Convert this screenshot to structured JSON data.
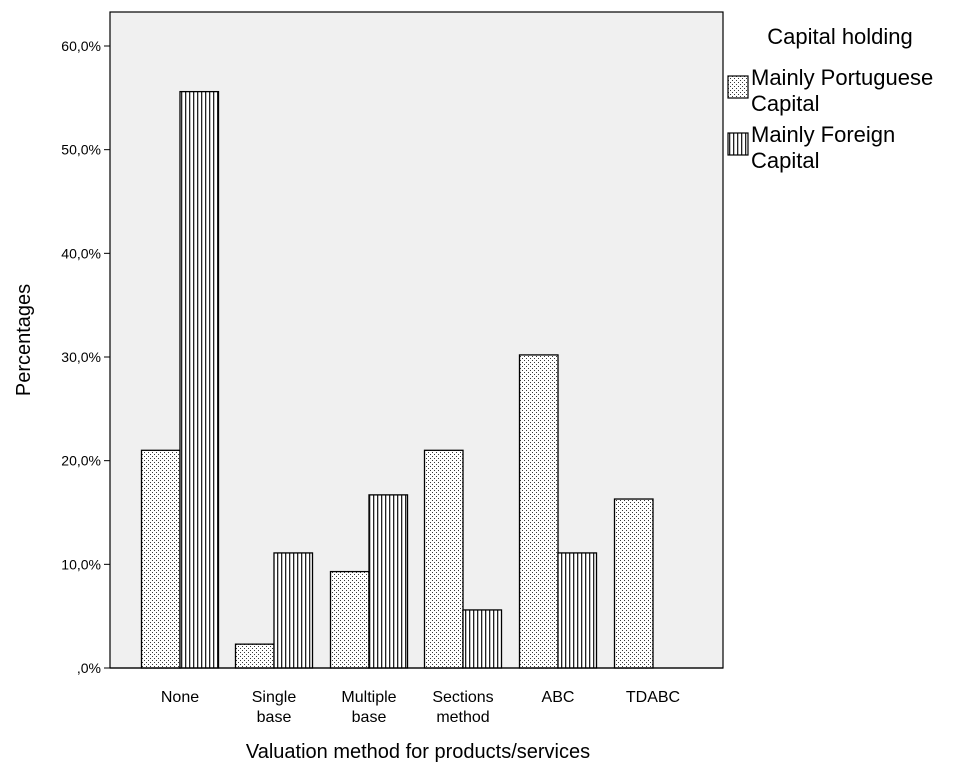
{
  "chart_data": {
    "type": "bar",
    "categories": [
      [
        "None"
      ],
      [
        "Single",
        "base"
      ],
      [
        "Multiple",
        "base"
      ],
      [
        "Sections",
        "method"
      ],
      [
        "ABC"
      ],
      [
        "TDABC"
      ]
    ],
    "series": [
      {
        "name": [
          "Mainly Portuguese",
          "Capital"
        ],
        "values": [
          21.0,
          2.3,
          9.3,
          21.0,
          30.2,
          16.3
        ],
        "pattern": "dots"
      },
      {
        "name": [
          "Mainly Foreign",
          "Capital"
        ],
        "values": [
          55.6,
          11.1,
          16.7,
          5.6,
          11.1,
          0.0
        ],
        "pattern": "vstripes"
      }
    ],
    "xlabel": "Valuation method for products/services",
    "ylabel": "Percentages",
    "legend_title": "Capital holding",
    "y_ticks": [
      0,
      10,
      20,
      30,
      40,
      50,
      60
    ],
    "y_tick_labels": [
      ",0%",
      "10,0%",
      "20,0%",
      "30,0%",
      "40,0%",
      "50,0%",
      "60,0%"
    ],
    "ylim": [
      0,
      60
    ],
    "grid": false,
    "legend_position": "right",
    "colors": {
      "plot_background": "#f0f0f0",
      "bar_fill": "#ffffff",
      "bar_stroke": "#000000",
      "pattern_ink": "#3a3a3a"
    }
  }
}
